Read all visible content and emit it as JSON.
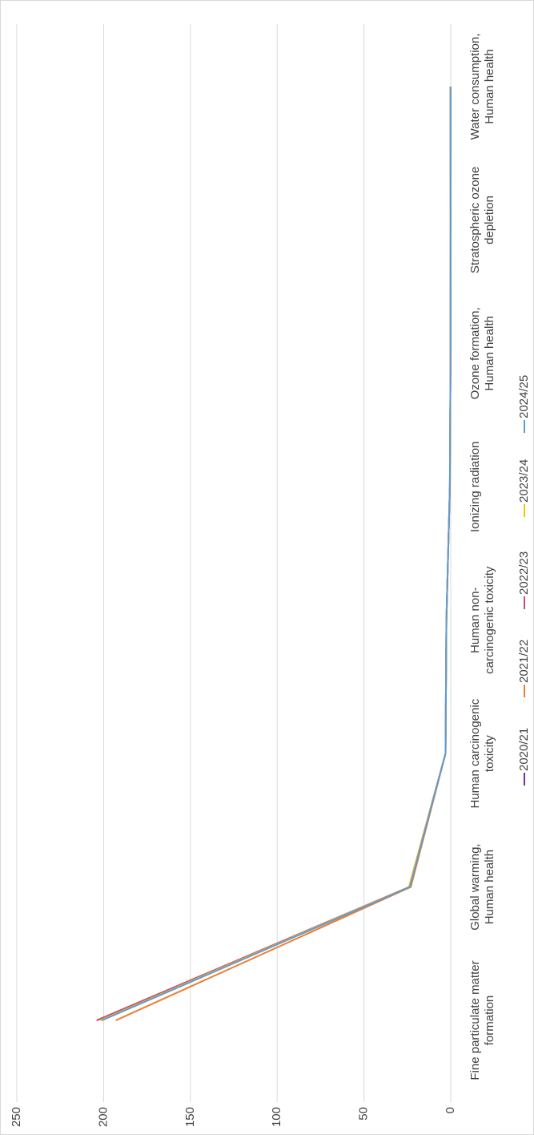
{
  "chart_data": {
    "type": "line",
    "categories": [
      "Fine particulate matter formation",
      "Global warming, Human health",
      "Human carcinogenic toxicity",
      "Human non-carcinogenic toxicity",
      "Ionizing radiation",
      "Ozone formation, Human health",
      "Stratospheric ozone depletion",
      "Water consumption, Human health"
    ],
    "series": [
      {
        "name": "2020/21",
        "color": "#7030a0",
        "values": [
          204,
          24,
          3,
          2.5,
          0.5,
          0.1,
          0.05,
          0.1
        ]
      },
      {
        "name": "2021/22",
        "color": "#ed7d31",
        "values": [
          193,
          23,
          3,
          2.5,
          0.5,
          0.1,
          0.05,
          0.1
        ]
      },
      {
        "name": "2022/23",
        "color": "#c0507a",
        "values": [
          204,
          24,
          3,
          2.5,
          0.5,
          0.1,
          0.05,
          0.1
        ]
      },
      {
        "name": "2023/24",
        "color": "#ffc000",
        "values": [
          202,
          24,
          3,
          2.5,
          0.5,
          0.1,
          0.05,
          0.1
        ]
      },
      {
        "name": "2024/25",
        "color": "#5b9bd5",
        "values": [
          201,
          23.5,
          3,
          2.5,
          0.5,
          0.1,
          0.05,
          0.1
        ]
      }
    ],
    "ylim": [
      0,
      250
    ],
    "yticks": [
      0,
      50,
      100,
      150,
      200,
      250
    ],
    "grid": true,
    "legend": "bottom"
  }
}
